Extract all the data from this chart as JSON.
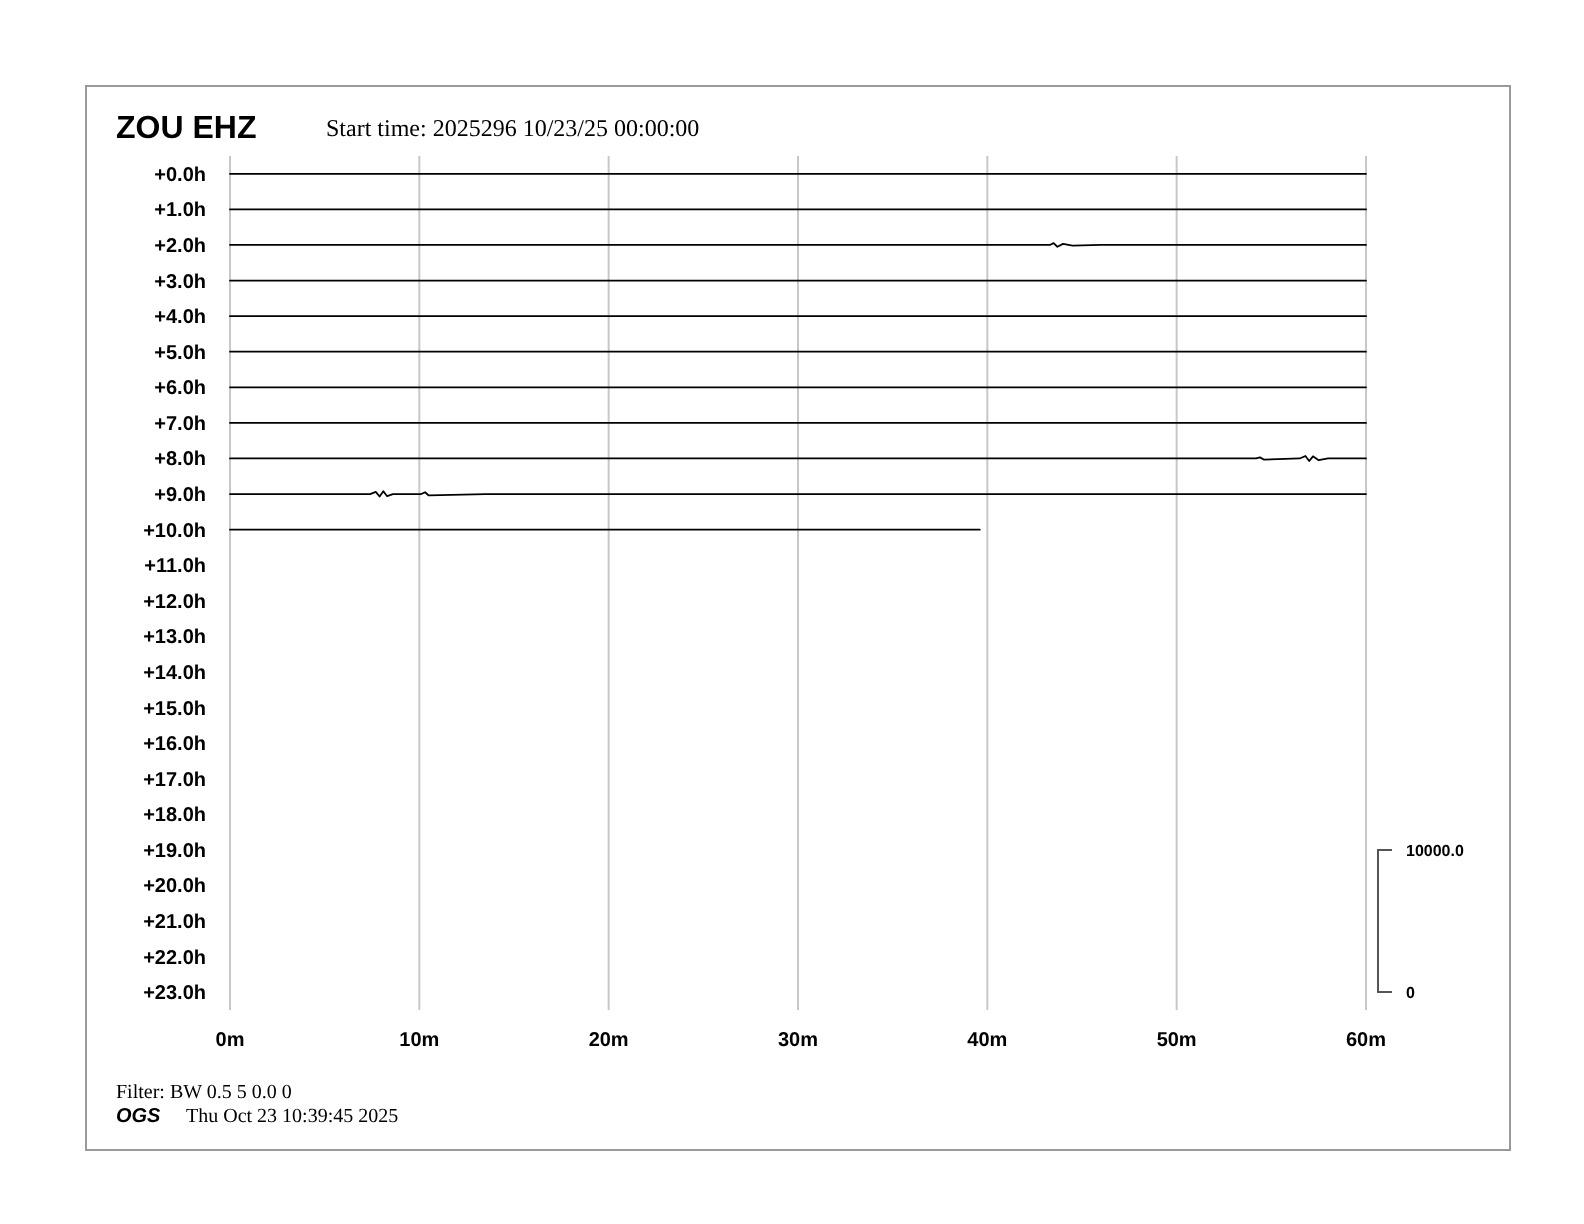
{
  "chart_data": {
    "type": "line",
    "title": "ZOU EHZ",
    "subtitle": "Start time: 2025296 10/23/25 00:00:00",
    "xlim": [
      0,
      60
    ],
    "xticks": [
      {
        "value": 0,
        "label": "0m"
      },
      {
        "value": 10,
        "label": "10m"
      },
      {
        "value": 20,
        "label": "20m"
      },
      {
        "value": 30,
        "label": "30m"
      },
      {
        "value": 40,
        "label": "40m"
      },
      {
        "value": 50,
        "label": "50m"
      },
      {
        "value": 60,
        "label": "60m"
      }
    ],
    "ylim": [
      23.5,
      -0.5
    ],
    "yticks": [
      {
        "value": 0,
        "label": "+0.0h"
      },
      {
        "value": 1,
        "label": "+1.0h"
      },
      {
        "value": 2,
        "label": "+2.0h"
      },
      {
        "value": 3,
        "label": "+3.0h"
      },
      {
        "value": 4,
        "label": "+4.0h"
      },
      {
        "value": 5,
        "label": "+5.0h"
      },
      {
        "value": 6,
        "label": "+6.0h"
      },
      {
        "value": 7,
        "label": "+7.0h"
      },
      {
        "value": 8,
        "label": "+8.0h"
      },
      {
        "value": 9,
        "label": "+9.0h"
      },
      {
        "value": 10,
        "label": "+10.0h"
      },
      {
        "value": 11,
        "label": "+11.0h"
      },
      {
        "value": 12,
        "label": "+12.0h"
      },
      {
        "value": 13,
        "label": "+13.0h"
      },
      {
        "value": 14,
        "label": "+14.0h"
      },
      {
        "value": 15,
        "label": "+15.0h"
      },
      {
        "value": 16,
        "label": "+16.0h"
      },
      {
        "value": 17,
        "label": "+17.0h"
      },
      {
        "value": 18,
        "label": "+18.0h"
      },
      {
        "value": 19,
        "label": "+19.0h"
      },
      {
        "value": 20,
        "label": "+20.0h"
      },
      {
        "value": 21,
        "label": "+21.0h"
      },
      {
        "value": 22,
        "label": "+22.0h"
      },
      {
        "value": 23,
        "label": "+23.0h"
      }
    ],
    "grid": "x",
    "marker": "none",
    "line_style": "solid",
    "series": [
      {
        "color": "#000000",
        "x": [
          0,
          60
        ],
        "values": [
          0,
          0
        ]
      },
      {
        "color": "#000000",
        "x": [
          0,
          60
        ],
        "values": [
          1,
          1
        ]
      },
      {
        "color": "#000000",
        "x": [
          0,
          43.3,
          43.5,
          43.7,
          44,
          44.5,
          46,
          60
        ],
        "values": [
          2,
          2,
          1.95,
          2.05,
          1.97,
          2.02,
          2,
          2
        ]
      },
      {
        "color": "#000000",
        "x": [
          0,
          60
        ],
        "values": [
          3,
          3
        ]
      },
      {
        "color": "#000000",
        "x": [
          0,
          60
        ],
        "values": [
          4,
          4
        ]
      },
      {
        "color": "#000000",
        "x": [
          0,
          60
        ],
        "values": [
          5,
          5
        ]
      },
      {
        "color": "#000000",
        "x": [
          0,
          60
        ],
        "values": [
          6,
          6
        ]
      },
      {
        "color": "#000000",
        "x": [
          0,
          60
        ],
        "values": [
          7,
          7
        ]
      },
      {
        "color": "#000000",
        "x": [
          0,
          54.2,
          54.4,
          54.6,
          56.5,
          56.8,
          57,
          57.2,
          57.5,
          58,
          60
        ],
        "values": [
          8,
          8,
          7.97,
          8.03,
          8,
          7.93,
          8.07,
          7.94,
          8.05,
          8,
          8
        ]
      },
      {
        "color": "#000000",
        "x": [
          0,
          7.4,
          7.7,
          7.9,
          8.1,
          8.3,
          8.6,
          10.1,
          10.3,
          10.5,
          13.5,
          60
        ],
        "values": [
          9,
          9,
          8.94,
          9.07,
          8.92,
          9.06,
          9,
          9,
          8.95,
          9.04,
          9,
          9
        ]
      },
      {
        "color": "#000000",
        "x": [
          0,
          39.6
        ],
        "values": [
          10,
          10
        ]
      }
    ],
    "annotations": [
      "Filter: BW 0.5 5 0.0 0",
      "OGS",
      "Thu Oct 23 10:39:45 2025",
      "10000.0",
      "0"
    ]
  }
}
